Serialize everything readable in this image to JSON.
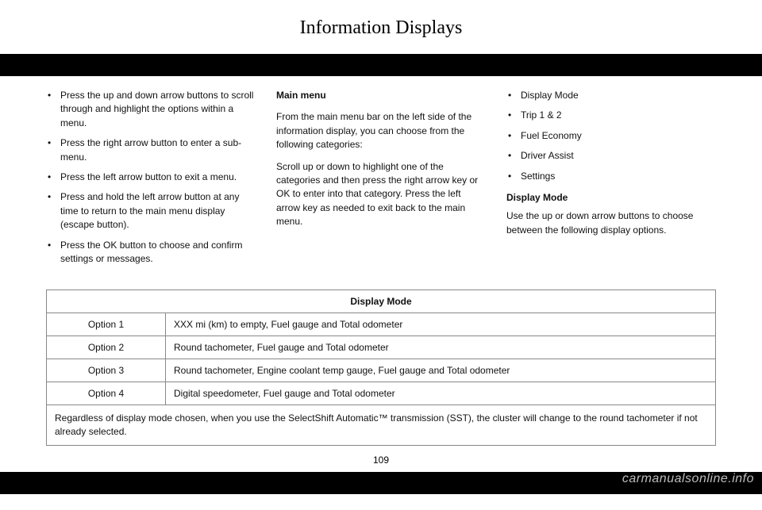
{
  "header": {
    "title": "Information Displays"
  },
  "col1": {
    "items": [
      "Press the up and down arrow buttons to scroll through and highlight the options within a menu.",
      "Press the right arrow button to enter a sub-menu.",
      "Press the left arrow button to exit a menu.",
      "Press and hold the left arrow button at any time to return to the main menu display (escape button).",
      "Press the OK button to choose and confirm settings or messages."
    ]
  },
  "col2": {
    "heading": "Main menu",
    "p1": "From the main menu bar on the left side of the information display, you can choose from the following categories:",
    "p2": "Scroll up or down to highlight one of the categories and then press the right arrow key or OK to enter into that category. Press the left arrow key as needed to exit back to the main menu."
  },
  "col3": {
    "items": [
      "Display Mode",
      "Trip 1 & 2",
      "Fuel Economy",
      "Driver Assist",
      "Settings"
    ],
    "heading": "Display Mode",
    "p1": "Use the up or down arrow buttons to choose between the following display options."
  },
  "table": {
    "title": "Display Mode",
    "rows": [
      {
        "opt": "Option 1",
        "desc": "XXX mi (km) to empty, Fuel gauge and Total odometer"
      },
      {
        "opt": "Option 2",
        "desc": "Round tachometer, Fuel gauge and Total odometer"
      },
      {
        "opt": "Option 3",
        "desc": "Round tachometer, Engine coolant temp gauge, Fuel gauge and Total odometer"
      },
      {
        "opt": "Option 4",
        "desc": "Digital speedometer, Fuel gauge and Total odometer"
      }
    ],
    "footnote": "Regardless of display mode chosen, when you use the SelectShift Automatic™ transmission (SST), the cluster will change to the round tachometer if not already selected."
  },
  "pageNumber": "109",
  "watermark": "carmanualsonline.info"
}
